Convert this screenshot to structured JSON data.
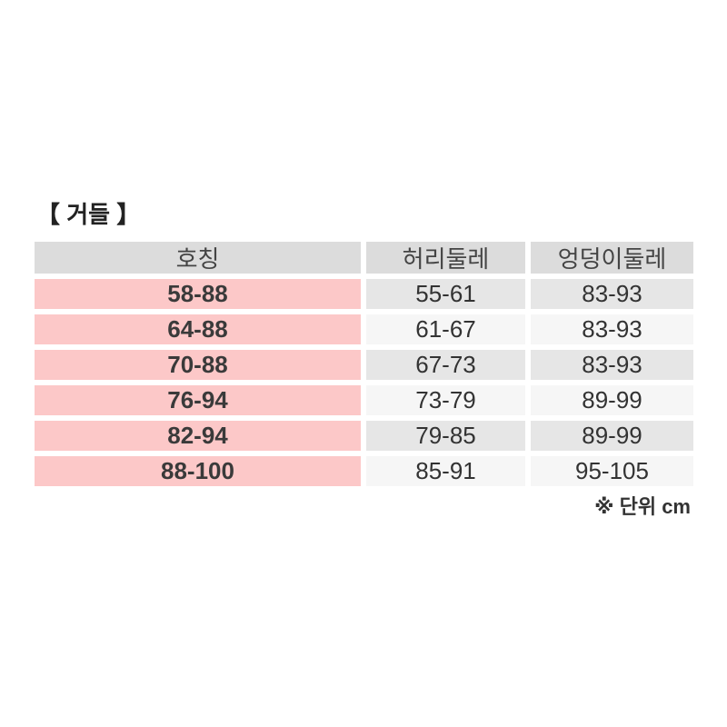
{
  "title": "【 거들 】",
  "table": {
    "headers": [
      "호칭",
      "허리둘레",
      "엉덩이둘레"
    ],
    "rows": [
      [
        "58-88",
        "55-61",
        "83-93"
      ],
      [
        "64-88",
        "61-67",
        "83-93"
      ],
      [
        "70-88",
        "67-73",
        "83-93"
      ],
      [
        "76-94",
        "73-79",
        "89-99"
      ],
      [
        "82-94",
        "79-85",
        "89-99"
      ],
      [
        "88-100",
        "85-91",
        "95-105"
      ]
    ]
  },
  "unit_note": "※ 단위 cm",
  "colors": {
    "header_bg": "#dcdcdc",
    "size_col_bg": "#fcc8c8",
    "row_odd_bg": "#e6e6e6",
    "row_even_bg": "#f6f6f6"
  }
}
